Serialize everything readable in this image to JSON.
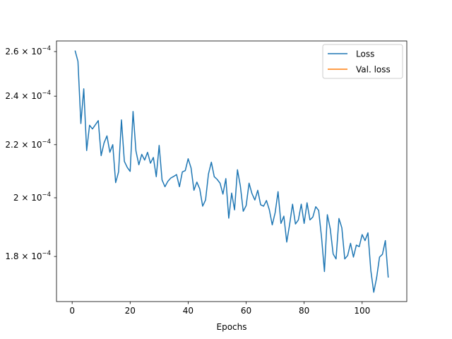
{
  "chart_data": {
    "type": "line",
    "title": "",
    "xlabel": "Epochs",
    "ylabel": "",
    "yscale": "log",
    "xlim": [
      -5.4,
      115.4
    ],
    "ylim": [
      0.000166,
      0.000265
    ],
    "grid": false,
    "legend": "top-right",
    "x_ticks": [
      0,
      20,
      40,
      60,
      80,
      100
    ],
    "x_tick_labels": [
      "0",
      "20",
      "40",
      "60",
      "80",
      "100"
    ],
    "y_ticks": [
      0.00018,
      0.0002,
      0.00022,
      0.00024,
      0.00026
    ],
    "y_tick_mantissas": [
      "1.8",
      "2",
      "2.2",
      "2.4",
      "2.6"
    ],
    "y_tick_times": "×",
    "y_tick_base": "10",
    "y_tick_exponent": "−4",
    "series": [
      {
        "name": "Loss",
        "color": "#1f77b4",
        "x": [
          1,
          2,
          3,
          4,
          5,
          6,
          7,
          8,
          9,
          10,
          11,
          12,
          13,
          14,
          15,
          16,
          17,
          18,
          19,
          20,
          21,
          22,
          23,
          24,
          25,
          26,
          27,
          28,
          29,
          30,
          31,
          32,
          33,
          34,
          35,
          36,
          37,
          38,
          39,
          40,
          41,
          42,
          43,
          44,
          45,
          46,
          47,
          48,
          49,
          50,
          51,
          52,
          53,
          54,
          55,
          56,
          57,
          58,
          59,
          60,
          61,
          62,
          63,
          64,
          65,
          66,
          67,
          68,
          69,
          70,
          71,
          72,
          73,
          74,
          75,
          76,
          77,
          78,
          79,
          80,
          81,
          82,
          83,
          84,
          85,
          86,
          87,
          88,
          89,
          90,
          91,
          92,
          93,
          94,
          95,
          96,
          97,
          98,
          99,
          100,
          101,
          102,
          103,
          104,
          105,
          106,
          107,
          108,
          109
        ],
        "y": [
          0.0002605,
          0.0002555,
          0.0002285,
          0.0002432,
          0.0002177,
          0.0002278,
          0.0002263,
          0.000228,
          0.0002297,
          0.0002157,
          0.0002207,
          0.0002235,
          0.000217,
          0.00022,
          0.0002055,
          0.0002095,
          0.00023,
          0.0002135,
          0.0002112,
          0.0002097,
          0.0002335,
          0.0002175,
          0.0002122,
          0.0002162,
          0.000214,
          0.000217,
          0.0002128,
          0.000215,
          0.0002077,
          0.0002197,
          0.0002065,
          0.000204,
          0.000206,
          0.0002072,
          0.0002078,
          0.0002085,
          0.000204,
          0.0002095,
          0.00021,
          0.0002145,
          0.000211,
          0.0002027,
          0.0002057,
          0.0002032,
          0.000197,
          0.0001992,
          0.0002087,
          0.0002132,
          0.0002077,
          0.0002067,
          0.0002053,
          0.0002013,
          0.000207,
          0.0001928,
          0.0002017,
          0.0001957,
          0.0002103,
          0.0002043,
          0.0001952,
          0.0001972,
          0.0002053,
          0.0002015,
          0.0001992,
          0.0002027,
          0.0001975,
          0.000197,
          0.000199,
          0.0001957,
          0.0001905,
          0.0001947,
          0.0002022,
          0.000191,
          0.0001935,
          0.0001847,
          0.0001907,
          0.0001977,
          0.0001908,
          0.0001922,
          0.0001977,
          0.000191,
          0.0001982,
          0.0001922,
          0.0001932,
          0.0001968,
          0.0001955,
          0.0001863,
          0.0001752,
          0.000194,
          0.0001892,
          0.0001808,
          0.0001792,
          0.0001927,
          0.0001895,
          0.0001792,
          0.0001803,
          0.0001843,
          0.0001798,
          0.0001837,
          0.0001832,
          0.0001872,
          0.0001852,
          0.0001878,
          0.0001755,
          0.0001688,
          0.0001733,
          0.0001798,
          0.0001807,
          0.0001852,
          0.0001733
        ]
      },
      {
        "name": "Val. loss",
        "color": "#ff7f0e",
        "x": [],
        "y": []
      }
    ]
  }
}
